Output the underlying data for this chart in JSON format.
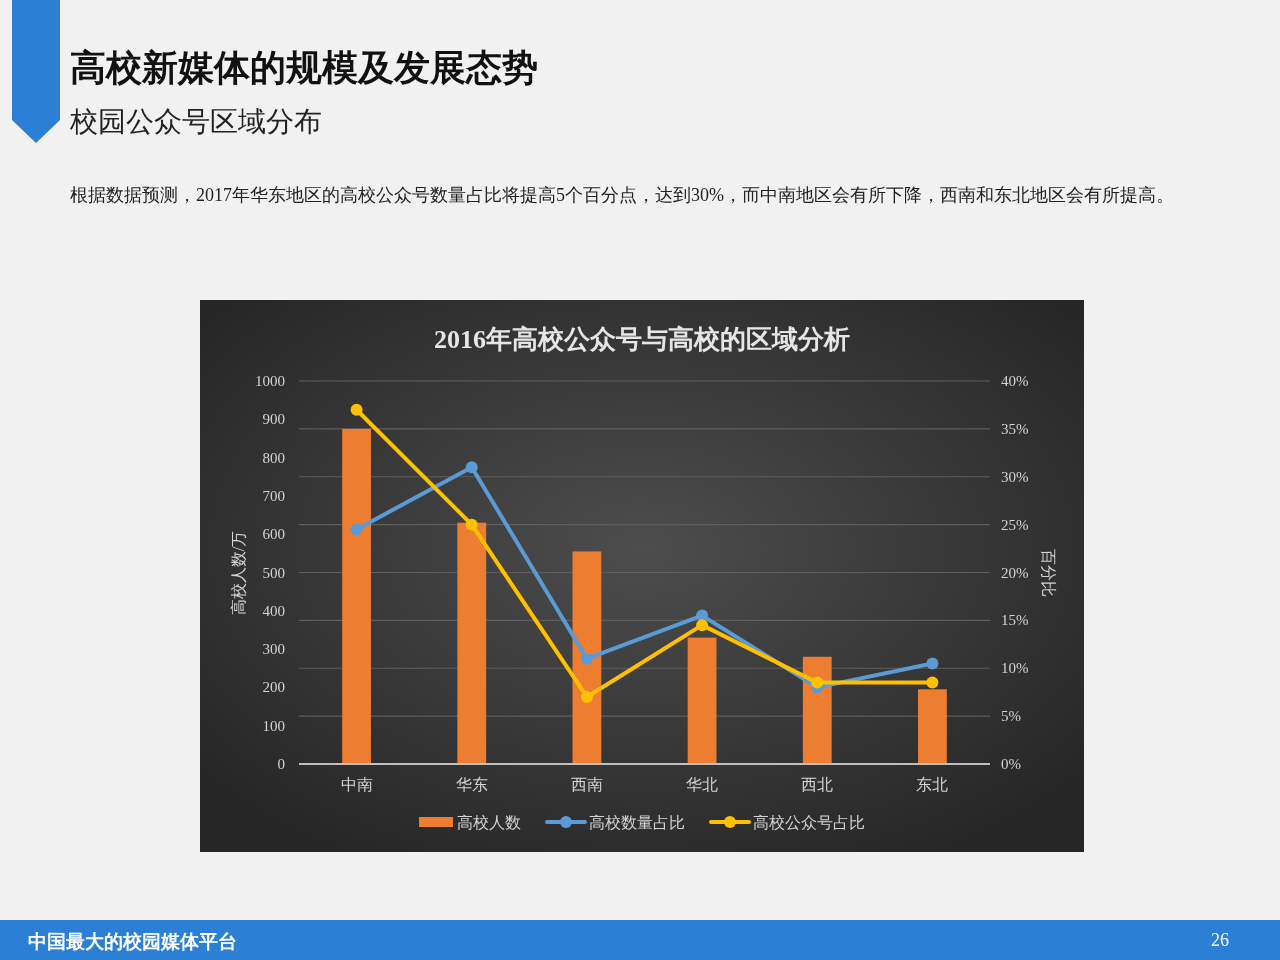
{
  "chart_data": {
    "type": "bar",
    "title": "2016年高校公众号与高校的区域分析",
    "ylabel": "高校人数/万",
    "y2label": "百分比",
    "categories": [
      "中南",
      "华东",
      "西南",
      "华北",
      "西北",
      "东北"
    ],
    "series": [
      {
        "name": "高校人数",
        "color": "#ed7d31",
        "values": [
          875,
          630,
          555,
          330,
          280,
          195
        ]
      },
      {
        "name": "高校数量占比",
        "type": "line",
        "axis": "y2",
        "color": "#5b9bd5",
        "values": [
          24.5,
          31,
          11,
          15.5,
          8,
          10.5
        ]
      },
      {
        "name": "高校公众号占比",
        "type": "line",
        "axis": "y2",
        "color": "#ffc000",
        "values": [
          37,
          25,
          7,
          14.5,
          8.5,
          8.5
        ]
      }
    ],
    "ylim": [
      0,
      1000
    ],
    "yticks": [
      0,
      100,
      200,
      300,
      400,
      500,
      600,
      700,
      800,
      900,
      1000
    ],
    "y2lim": [
      0,
      40
    ],
    "y2ticks": [
      {
        "value": 0,
        "label": "0%"
      },
      {
        "value": 5,
        "label": "5%"
      },
      {
        "value": 10,
        "label": "10%"
      },
      {
        "value": 15,
        "label": "15%"
      },
      {
        "value": 20,
        "label": "20%"
      },
      {
        "value": 25,
        "label": "25%"
      },
      {
        "value": 30,
        "label": "30%"
      },
      {
        "value": 35,
        "label": "35%"
      },
      {
        "value": 40,
        "label": "40%"
      }
    ],
    "grid": "y2",
    "legend": "bottom",
    "marker": "circle",
    "line_style": "solid",
    "annotations": [
      "高校新媒体的规模及发展态势",
      "校园公众号区域分布",
      "根据数据预测，2017年华东地区的高校公众号数量占比将提高5个百分点，达到30%，而中南地区会有所下降，西南和东北地区会有所提高。",
      "中国最大的校园媒体平台",
      "26"
    ]
  }
}
